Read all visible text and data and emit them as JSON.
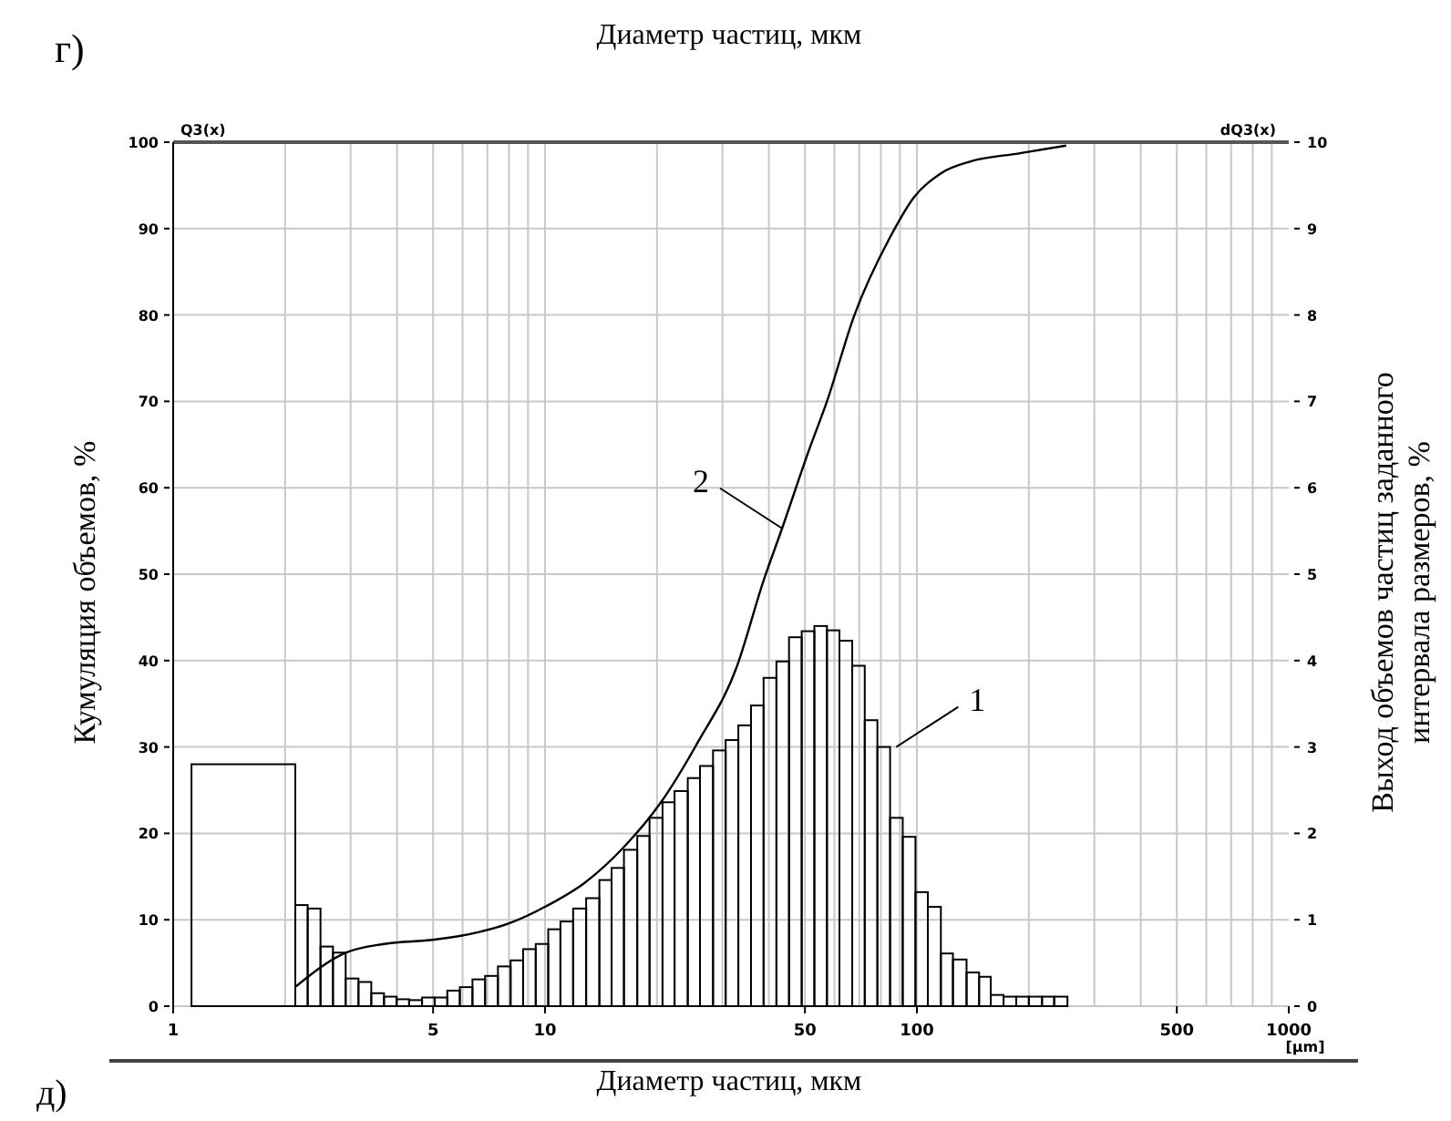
{
  "chart_data": {
    "type": "histogram",
    "title": "Диаметр частиц, мкм",
    "xlabel": "Диаметр частиц, мкм",
    "ylabel": "Кумуляция объемов, %",
    "y2label": "Выход объемов частиц заданного интервала размеров, %",
    "log": "x",
    "xlim": [
      1,
      1000
    ],
    "xticks": [
      1,
      5,
      10,
      50,
      100,
      500,
      1000
    ],
    "ylim": [
      0,
      100
    ],
    "yticks": [
      0,
      10,
      20,
      30,
      40,
      50,
      60,
      70,
      80,
      90,
      100
    ],
    "y2lim": [
      0,
      10
    ],
    "y2ticks": [
      0,
      1,
      2,
      3,
      4,
      5,
      6,
      7,
      8,
      9,
      10
    ],
    "grid": true,
    "annotations": [
      "г)",
      "д)",
      "Q3(x)",
      "dQ3(x)",
      "[µm]",
      {
        "text": "1",
        "x": 88,
        "y": 30
      },
      {
        "text": "2",
        "x": 43.4,
        "y": 55.3
      }
    ],
    "series": [
      {
        "axis": "y2",
        "color": "#000000",
        "bins": [
          1.12,
          2.13,
          2.3,
          2.49,
          2.69,
          2.91,
          3.15,
          3.41,
          3.69,
          3.99,
          4.31,
          4.67,
          5.05,
          5.46,
          5.9,
          6.38,
          6.9,
          7.47,
          8.08,
          8.73,
          9.44,
          10.2,
          11.0,
          11.9,
          12.9,
          14.0,
          15.1,
          16.3,
          17.7,
          19.1,
          20.7,
          22.3,
          24.2,
          26.1,
          28.3,
          30.6,
          33.1,
          35.8,
          38.7,
          41.9,
          45.3,
          49.0,
          53.0,
          57.3,
          61.9,
          67.0,
          72.4,
          78.3,
          84.7,
          91.6,
          99.1,
          107,
          116,
          125,
          136,
          147,
          158,
          171,
          185,
          200,
          217,
          234,
          254
        ],
        "values": [
          2.8,
          1.17,
          1.13,
          0.69,
          0.62,
          0.32,
          0.28,
          0.15,
          0.11,
          0.08,
          0.07,
          0.1,
          0.1,
          0.18,
          0.22,
          0.31,
          0.35,
          0.46,
          0.53,
          0.66,
          0.72,
          0.89,
          0.98,
          1.13,
          1.25,
          1.46,
          1.6,
          1.81,
          1.97,
          2.18,
          2.36,
          2.49,
          2.64,
          2.78,
          2.96,
          3.08,
          3.25,
          3.48,
          3.8,
          3.99,
          4.27,
          4.34,
          4.4,
          4.35,
          4.23,
          3.94,
          3.31,
          3.0,
          2.18,
          1.96,
          1.32,
          1.15,
          0.61,
          0.54,
          0.39,
          0.34,
          0.13,
          0.11,
          0.11,
          0.11,
          0.11,
          0.11
        ]
      },
      {
        "type": "line",
        "color": "#000000",
        "x": [
          2.14,
          2.92,
          3.69,
          5.03,
          6.36,
          8.03,
          10.1,
          12.8,
          16.2,
          20.5,
          25.8,
          32.6,
          38.8,
          43.4,
          51.3,
          57.3,
          67.8,
          84.7,
          98.1,
          116,
          140,
          188,
          252
        ],
        "values": [
          2.3,
          6.2,
          7.2,
          7.7,
          8.4,
          9.6,
          11.6,
          14.3,
          18.3,
          23.6,
          30.6,
          39.0,
          49.4,
          55.3,
          64.4,
          70.0,
          79.9,
          89.0,
          93.6,
          96.4,
          97.8,
          98.7,
          99.6
        ]
      }
    ]
  }
}
